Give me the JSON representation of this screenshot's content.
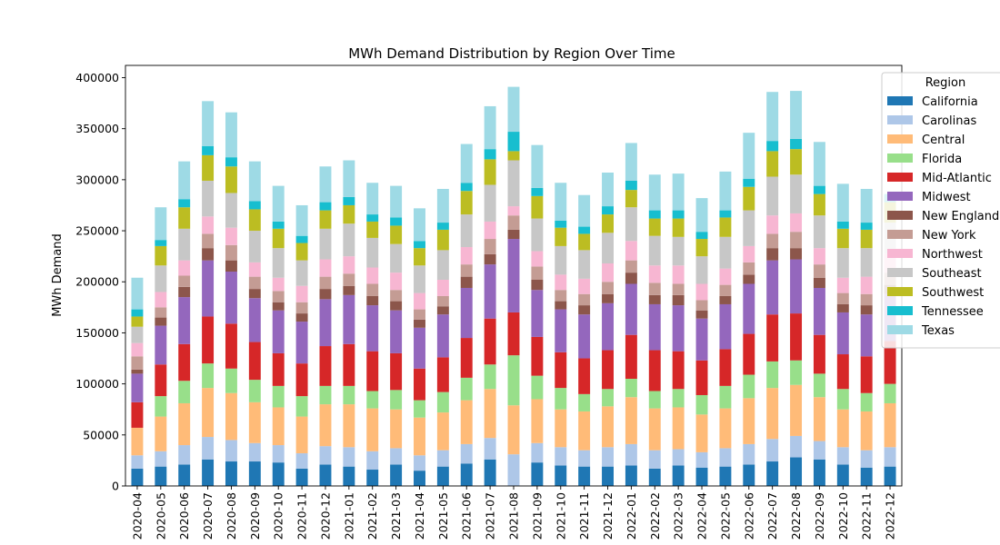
{
  "chart_data": {
    "type": "bar",
    "stacked": true,
    "title": "MWh Demand Distribution by Region Over Time",
    "xlabel": "",
    "ylabel": "MWh Demand",
    "ylim": [
      0,
      412000
    ],
    "yticks": [
      0,
      50000,
      100000,
      150000,
      200000,
      250000,
      300000,
      350000,
      400000
    ],
    "grid": false,
    "legend_title": "Region",
    "legend_position": "upper-right",
    "categories": [
      "2020-04",
      "2020-05",
      "2020-06",
      "2020-07",
      "2020-08",
      "2020-09",
      "2020-10",
      "2020-11",
      "2020-12",
      "2021-01",
      "2021-02",
      "2021-03",
      "2021-04",
      "2021-05",
      "2021-06",
      "2021-07",
      "2021-08",
      "2021-09",
      "2021-10",
      "2021-11",
      "2021-12",
      "2022-01",
      "2022-02",
      "2022-03",
      "2022-04",
      "2022-05",
      "2022-06",
      "2022-07",
      "2022-08",
      "2022-09",
      "2022-10",
      "2022-11",
      "2022-12"
    ],
    "series": [
      {
        "name": "California",
        "color": "#1f77b4",
        "values": [
          17000,
          19000,
          21000,
          26000,
          24000,
          24000,
          23000,
          17000,
          21000,
          19000,
          16000,
          21000,
          15000,
          19000,
          22000,
          26000,
          0,
          23000,
          20000,
          19000,
          19000,
          20000,
          17000,
          20000,
          18000,
          19000,
          21000,
          24000,
          28000,
          26000,
          21000,
          18000,
          19000
        ]
      },
      {
        "name": "Carolinas",
        "color": "#aec7e8",
        "values": [
          13000,
          15000,
          19000,
          22000,
          21000,
          18000,
          17000,
          15000,
          18000,
          19000,
          18000,
          16000,
          15000,
          16000,
          19000,
          21000,
          31000,
          19000,
          18000,
          16000,
          19000,
          21000,
          18000,
          16000,
          15000,
          18000,
          20000,
          22000,
          21000,
          18000,
          17000,
          17000,
          19000
        ]
      },
      {
        "name": "Central",
        "color": "#ffbb78",
        "values": [
          27000,
          34000,
          41000,
          48000,
          46000,
          40000,
          37000,
          36000,
          41000,
          42000,
          42000,
          38000,
          37000,
          37000,
          43000,
          48000,
          48000,
          43000,
          37000,
          38000,
          40000,
          46000,
          41000,
          41000,
          37000,
          39000,
          45000,
          50000,
          50000,
          43000,
          37000,
          38000,
          43000
        ]
      },
      {
        "name": "Florida",
        "color": "#98df8a",
        "values": [
          0,
          20000,
          22000,
          24000,
          24000,
          22000,
          21000,
          20000,
          18000,
          18000,
          17000,
          19000,
          17000,
          20000,
          22000,
          24000,
          49000,
          23000,
          21000,
          17000,
          17000,
          18000,
          17000,
          18000,
          19000,
          22000,
          23000,
          26000,
          24000,
          23000,
          20000,
          18000,
          19000
        ]
      },
      {
        "name": "Mid-Atlantic",
        "color": "#d62728",
        "values": [
          25000,
          31000,
          36000,
          46000,
          44000,
          37000,
          32000,
          32000,
          39000,
          41000,
          39000,
          36000,
          31000,
          34000,
          39000,
          45000,
          42000,
          38000,
          35000,
          35000,
          38000,
          43000,
          40000,
          37000,
          34000,
          36000,
          40000,
          46000,
          46000,
          38000,
          34000,
          36000,
          42000
        ]
      },
      {
        "name": "Midwest",
        "color": "#9467bd",
        "values": [
          28000,
          38000,
          46000,
          55000,
          51000,
          43000,
          42000,
          41000,
          46000,
          48000,
          45000,
          42000,
          40000,
          42000,
          49000,
          53000,
          72000,
          46000,
          42000,
          43000,
          46000,
          50000,
          45000,
          45000,
          41000,
          44000,
          49000,
          53000,
          53000,
          46000,
          41000,
          41000,
          46000
        ]
      },
      {
        "name": "New England",
        "color": "#8c564b",
        "values": [
          4000,
          8000,
          10000,
          12000,
          11000,
          9000,
          8000,
          8000,
          10000,
          9000,
          9000,
          9000,
          8000,
          8000,
          11000,
          10000,
          9000,
          10000,
          8000,
          9000,
          9000,
          11000,
          9000,
          10000,
          8000,
          8000,
          9000,
          12000,
          11000,
          10000,
          8000,
          9000,
          9000
        ]
      },
      {
        "name": "New York",
        "color": "#c49c94",
        "values": [
          13000,
          10000,
          11000,
          14000,
          15000,
          12000,
          11000,
          11000,
          12000,
          12000,
          12000,
          11000,
          10000,
          10000,
          12000,
          15000,
          14000,
          13000,
          11000,
          11000,
          12000,
          12000,
          12000,
          11000,
          10000,
          11000,
          12000,
          14000,
          16000,
          13000,
          11000,
          11000,
          12000
        ]
      },
      {
        "name": "Northwest",
        "color": "#f7b6d2",
        "values": [
          13000,
          15000,
          15000,
          17000,
          17000,
          14000,
          13000,
          16000,
          17000,
          17000,
          16000,
          17000,
          16000,
          16000,
          17000,
          17000,
          9000,
          15000,
          15000,
          15000,
          18000,
          19000,
          17000,
          18000,
          16000,
          16000,
          16000,
          18000,
          18000,
          16000,
          15000,
          17000,
          19000
        ]
      },
      {
        "name": "Southeast",
        "color": "#c7c7c7",
        "values": [
          16000,
          26000,
          31000,
          35000,
          34000,
          31000,
          29000,
          25000,
          30000,
          32000,
          29000,
          28000,
          27000,
          29000,
          32000,
          36000,
          45000,
          32000,
          28000,
          28000,
          30000,
          33000,
          29000,
          28000,
          27000,
          31000,
          35000,
          38000,
          38000,
          32000,
          29000,
          28000,
          30000
        ]
      },
      {
        "name": "Southwest",
        "color": "#bcbd22",
        "values": [
          10000,
          19000,
          21000,
          25000,
          26000,
          21000,
          19000,
          17000,
          18000,
          18000,
          16000,
          18000,
          17000,
          20000,
          23000,
          25000,
          9000,
          22000,
          18000,
          16000,
          18000,
          17000,
          17000,
          18000,
          17000,
          19000,
          23000,
          25000,
          25000,
          21000,
          19000,
          18000,
          20000
        ]
      },
      {
        "name": "Tennessee",
        "color": "#17becf",
        "values": [
          7000,
          6000,
          8000,
          9000,
          9000,
          8000,
          7000,
          7000,
          8000,
          8000,
          7000,
          8000,
          7000,
          7000,
          8000,
          10000,
          19000,
          8000,
          7000,
          7000,
          8000,
          9000,
          8000,
          8000,
          7000,
          7000,
          8000,
          10000,
          10000,
          8000,
          7000,
          7000,
          8000
        ]
      },
      {
        "name": "Texas",
        "color": "#9edae5",
        "values": [
          31000,
          32000,
          37000,
          44000,
          44000,
          39000,
          35000,
          30000,
          35000,
          36000,
          31000,
          31000,
          32000,
          33000,
          38000,
          42000,
          44000,
          42000,
          37000,
          31000,
          33000,
          37000,
          35000,
          36000,
          33000,
          38000,
          45000,
          48000,
          47000,
          43000,
          37000,
          33000,
          0
        ]
      }
    ]
  }
}
